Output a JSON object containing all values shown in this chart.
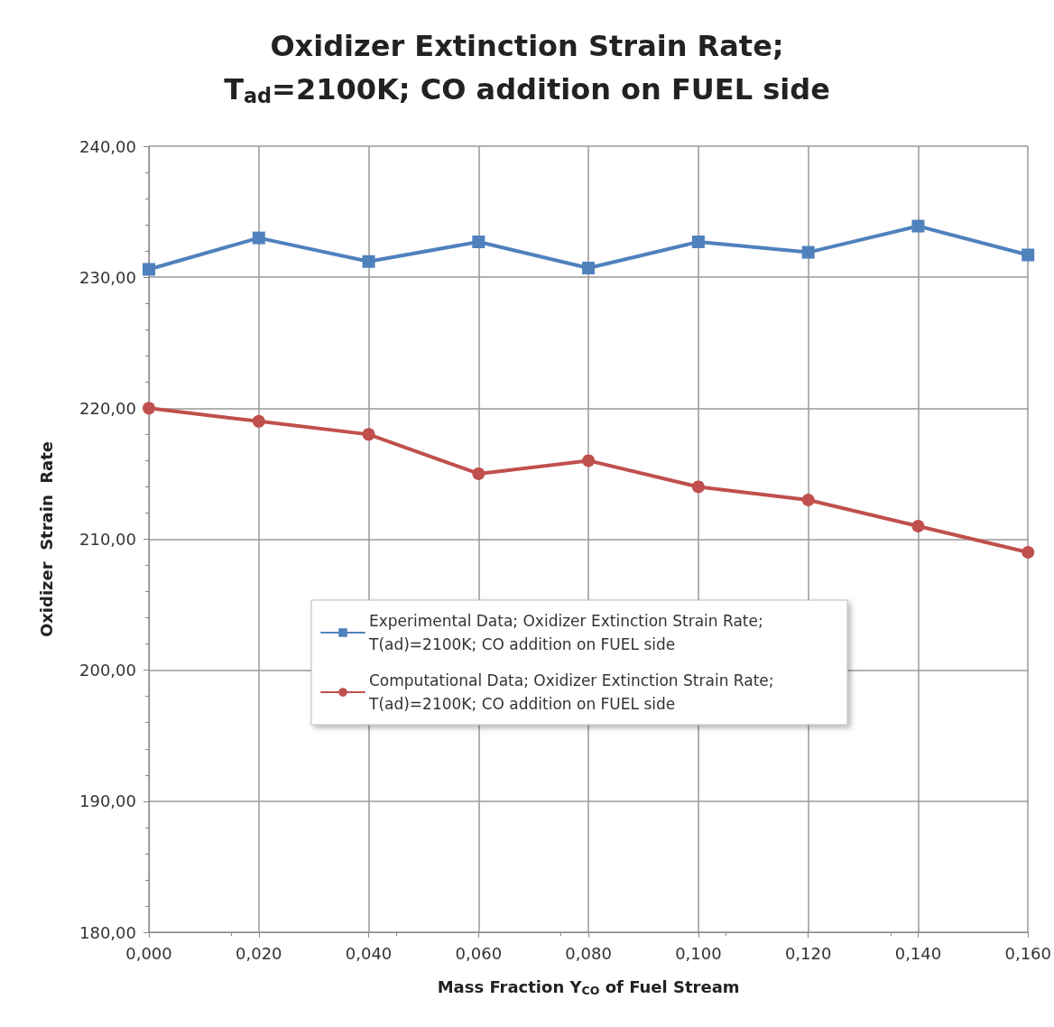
{
  "chart_data": {
    "type": "line",
    "title": "Oxidizer Extinction Strain Rate;",
    "subtitle": "T$_{ad}$=2100K; CO addition on FUEL side",
    "xlabel": "Mass Fraction Y$_{CO}$ of Fuel Stream",
    "ylabel": "Oxidizer  Strain  Rate",
    "x": [
      0,
      0.02,
      0.04,
      0.06,
      0.08,
      0.1,
      0.12,
      0.14,
      0.16
    ],
    "series": [
      {
        "name": "Experimental Data; Oxidizer Extinction Strain Rate; T(ad)=2100K; CO addition on FUEL side",
        "color": "#4f81bd",
        "marker": "square",
        "values": [
          230.6,
          233.0,
          231.2,
          232.7,
          230.7,
          232.7,
          231.9,
          233.9,
          231.7
        ]
      },
      {
        "name": "Computational Data; Oxidizer Extinction Strain Rate; T(ad)=2100K; CO addition on FUEL side",
        "color": "#c0504d",
        "marker": "circle",
        "values": [
          220,
          219,
          218,
          215,
          216,
          214,
          213,
          211,
          209
        ]
      }
    ],
    "xlim": [
      0,
      0.16
    ],
    "xticks": [
      {
        "value": 0,
        "label": "0,000"
      },
      {
        "value": 0.02,
        "label": "0,020"
      },
      {
        "value": 0.04,
        "label": "0,040"
      },
      {
        "value": 0.06,
        "label": "0,060"
      },
      {
        "value": 0.08,
        "label": "0,080"
      },
      {
        "value": 0.1,
        "label": "0,100"
      },
      {
        "value": 0.12,
        "label": "0,120"
      },
      {
        "value": 0.14,
        "label": "0,140"
      },
      {
        "value": 0.16,
        "label": "0,160"
      }
    ],
    "ylim": [
      180,
      240
    ],
    "yticks": [
      {
        "value": 180,
        "label": "180,00"
      },
      {
        "value": 190,
        "label": "190,00"
      },
      {
        "value": 200,
        "label": "200,00"
      },
      {
        "value": 210,
        "label": "210,00"
      },
      {
        "value": 220,
        "label": "220,00"
      },
      {
        "value": 230,
        "label": "230,00"
      },
      {
        "value": 240,
        "label": "240,00"
      }
    ],
    "grid": true,
    "legend": "center",
    "line_style": "solid"
  }
}
